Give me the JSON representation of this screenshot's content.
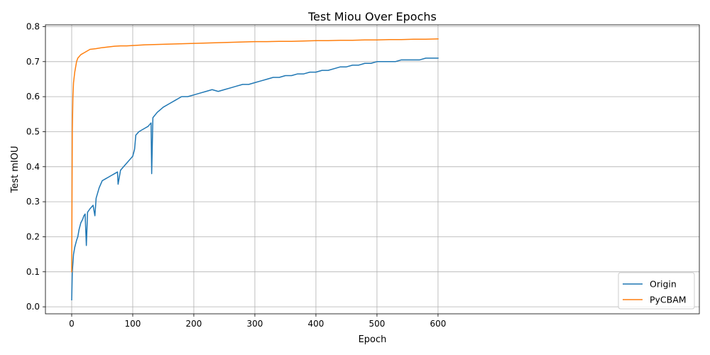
{
  "chart_data": {
    "type": "line",
    "title": "Test Miou Over Epochs",
    "xlabel": "Epoch",
    "ylabel": "Test mIOU",
    "xlim": [
      -43,
      1028
    ],
    "ylim": [
      -0.02,
      0.805
    ],
    "x_ticks": [
      0,
      100,
      200,
      300,
      400,
      500,
      600
    ],
    "y_ticks": [
      0.0,
      0.1,
      0.2,
      0.3,
      0.4,
      0.5,
      0.6,
      0.7,
      0.8
    ],
    "grid": true,
    "legend_position": "lower-right",
    "series": [
      {
        "name": "Origin",
        "color": "#1f77b4",
        "points": [
          [
            0,
            0.02
          ],
          [
            1,
            0.1
          ],
          [
            3,
            0.15
          ],
          [
            5,
            0.17
          ],
          [
            8,
            0.19
          ],
          [
            10,
            0.2
          ],
          [
            12,
            0.22
          ],
          [
            15,
            0.24
          ],
          [
            18,
            0.25
          ],
          [
            20,
            0.26
          ],
          [
            22,
            0.265
          ],
          [
            24,
            0.175
          ],
          [
            26,
            0.27
          ],
          [
            30,
            0.28
          ],
          [
            35,
            0.29
          ],
          [
            38,
            0.26
          ],
          [
            40,
            0.31
          ],
          [
            45,
            0.34
          ],
          [
            50,
            0.36
          ],
          [
            55,
            0.365
          ],
          [
            60,
            0.37
          ],
          [
            65,
            0.375
          ],
          [
            70,
            0.38
          ],
          [
            75,
            0.385
          ],
          [
            76,
            0.35
          ],
          [
            80,
            0.39
          ],
          [
            85,
            0.4
          ],
          [
            90,
            0.41
          ],
          [
            95,
            0.42
          ],
          [
            100,
            0.43
          ],
          [
            103,
            0.45
          ],
          [
            105,
            0.49
          ],
          [
            110,
            0.5
          ],
          [
            115,
            0.505
          ],
          [
            120,
            0.51
          ],
          [
            125,
            0.515
          ],
          [
            130,
            0.525
          ],
          [
            131,
            0.38
          ],
          [
            133,
            0.54
          ],
          [
            140,
            0.555
          ],
          [
            150,
            0.57
          ],
          [
            160,
            0.58
          ],
          [
            170,
            0.59
          ],
          [
            180,
            0.6
          ],
          [
            190,
            0.6
          ],
          [
            200,
            0.605
          ],
          [
            210,
            0.61
          ],
          [
            220,
            0.615
          ],
          [
            230,
            0.62
          ],
          [
            240,
            0.615
          ],
          [
            250,
            0.62
          ],
          [
            260,
            0.625
          ],
          [
            270,
            0.63
          ],
          [
            280,
            0.635
          ],
          [
            290,
            0.635
          ],
          [
            300,
            0.64
          ],
          [
            310,
            0.645
          ],
          [
            320,
            0.65
          ],
          [
            330,
            0.655
          ],
          [
            340,
            0.655
          ],
          [
            350,
            0.66
          ],
          [
            360,
            0.66
          ],
          [
            370,
            0.665
          ],
          [
            380,
            0.665
          ],
          [
            390,
            0.67
          ],
          [
            400,
            0.67
          ],
          [
            410,
            0.675
          ],
          [
            420,
            0.675
          ],
          [
            430,
            0.68
          ],
          [
            440,
            0.685
          ],
          [
            450,
            0.685
          ],
          [
            460,
            0.69
          ],
          [
            470,
            0.69
          ],
          [
            480,
            0.695
          ],
          [
            490,
            0.695
          ],
          [
            500,
            0.7
          ],
          [
            510,
            0.7
          ],
          [
            520,
            0.7
          ],
          [
            530,
            0.7
          ],
          [
            540,
            0.705
          ],
          [
            550,
            0.705
          ],
          [
            560,
            0.705
          ],
          [
            570,
            0.705
          ],
          [
            580,
            0.71
          ],
          [
            590,
            0.71
          ],
          [
            600,
            0.71
          ]
        ]
      },
      {
        "name": "PyCBAM",
        "color": "#ff7f0e",
        "points": [
          [
            0,
            0.1
          ],
          [
            1,
            0.5
          ],
          [
            2,
            0.6
          ],
          [
            3,
            0.64
          ],
          [
            5,
            0.67
          ],
          [
            8,
            0.7
          ],
          [
            10,
            0.71
          ],
          [
            15,
            0.72
          ],
          [
            20,
            0.725
          ],
          [
            25,
            0.73
          ],
          [
            30,
            0.735
          ],
          [
            40,
            0.737
          ],
          [
            50,
            0.74
          ],
          [
            60,
            0.742
          ],
          [
            70,
            0.744
          ],
          [
            80,
            0.745
          ],
          [
            90,
            0.745
          ],
          [
            100,
            0.746
          ],
          [
            120,
            0.748
          ],
          [
            140,
            0.749
          ],
          [
            160,
            0.75
          ],
          [
            180,
            0.751
          ],
          [
            200,
            0.752
          ],
          [
            220,
            0.753
          ],
          [
            240,
            0.754
          ],
          [
            260,
            0.755
          ],
          [
            280,
            0.756
          ],
          [
            300,
            0.757
          ],
          [
            320,
            0.757
          ],
          [
            340,
            0.758
          ],
          [
            360,
            0.758
          ],
          [
            380,
            0.759
          ],
          [
            400,
            0.76
          ],
          [
            420,
            0.76
          ],
          [
            440,
            0.761
          ],
          [
            460,
            0.761
          ],
          [
            480,
            0.762
          ],
          [
            500,
            0.762
          ],
          [
            520,
            0.763
          ],
          [
            540,
            0.763
          ],
          [
            560,
            0.764
          ],
          [
            580,
            0.764
          ],
          [
            600,
            0.765
          ]
        ]
      }
    ]
  }
}
